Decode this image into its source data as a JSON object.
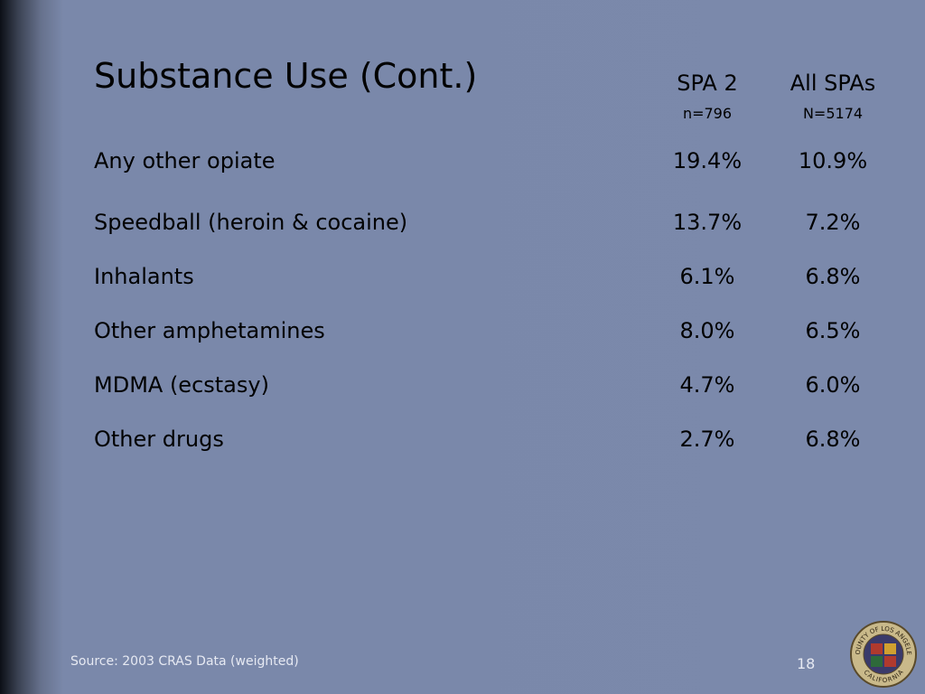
{
  "header": {
    "title": "Substance Use (Cont.)"
  },
  "table": {
    "columns": [
      {
        "label": "SPA 2",
        "sublabel": "n=796"
      },
      {
        "label": "All SPAs",
        "sublabel": "N=5174"
      }
    ],
    "rows": [
      [
        "Any other opiate",
        "19.4%",
        "10.9%"
      ],
      [
        "Speedball (heroin & cocaine)",
        "13.7%",
        "7.2%"
      ],
      [
        "Inhalants",
        "6.1%",
        "6.8%"
      ],
      [
        "Other amphetamines",
        "8.0%",
        "6.5%"
      ],
      [
        "MDMA (ecstasy)",
        "4.7%",
        "6.0%"
      ],
      [
        "Other drugs",
        "2.7%",
        "6.8%"
      ]
    ]
  },
  "footer": {
    "source": "Source: 2003 CRAS Data (weighted)",
    "page": "18"
  },
  "seal": {
    "top": "COUNTY OF LOS ANGELES",
    "bottom": "CALIFORNIA"
  }
}
